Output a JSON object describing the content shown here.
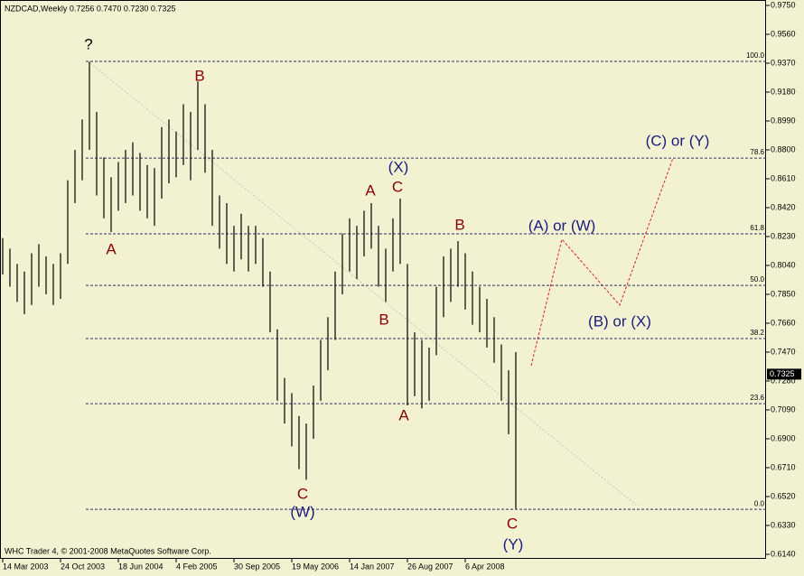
{
  "chart_data": {
    "type": "range",
    "header": "NZDCAD,Weekly  0.7256 0.7470 0.7230 0.7325",
    "footer": "WHC Trader 4, © 2001-2008 MetaQuotes Software Corp.",
    "series": [
      {
        "name": "high",
        "color": "#000000",
        "values": [
          0.822,
          0.815,
          0.805,
          0.8,
          0.812,
          0.818,
          0.81,
          0.805,
          0.812,
          0.86,
          0.88,
          0.9,
          0.938,
          0.905,
          0.875,
          0.862,
          0.872,
          0.88,
          0.885,
          0.878,
          0.87,
          0.868,
          0.895,
          0.9,
          0.892,
          0.91,
          0.905,
          0.925,
          0.91,
          0.88,
          0.85,
          0.845,
          0.83,
          0.838,
          0.83,
          0.83,
          0.822,
          0.8,
          0.762,
          0.73,
          0.72,
          0.705,
          0.7,
          0.725,
          0.755,
          0.77,
          0.8,
          0.825,
          0.835,
          0.83,
          0.84,
          0.845,
          0.83,
          0.815,
          0.835,
          0.848,
          0.805,
          0.76,
          0.755,
          0.75,
          0.79,
          0.81,
          0.815,
          0.82,
          0.812,
          0.8,
          0.79,
          0.782,
          0.77,
          0.752,
          0.735,
          0.747
        ]
      },
      {
        "name": "low",
        "color": "#000000",
        "values": [
          0.798,
          0.79,
          0.78,
          0.772,
          0.778,
          0.79,
          0.785,
          0.778,
          0.782,
          0.805,
          0.845,
          0.86,
          0.88,
          0.85,
          0.835,
          0.826,
          0.84,
          0.845,
          0.85,
          0.84,
          0.835,
          0.83,
          0.848,
          0.858,
          0.862,
          0.87,
          0.86,
          0.88,
          0.865,
          0.83,
          0.815,
          0.805,
          0.8,
          0.808,
          0.8,
          0.805,
          0.79,
          0.76,
          0.715,
          0.7,
          0.685,
          0.67,
          0.663,
          0.69,
          0.715,
          0.735,
          0.755,
          0.785,
          0.8,
          0.795,
          0.81,
          0.815,
          0.79,
          0.78,
          0.8,
          0.805,
          0.712,
          0.718,
          0.71,
          0.715,
          0.745,
          0.77,
          0.78,
          0.79,
          0.775,
          0.765,
          0.76,
          0.75,
          0.74,
          0.715,
          0.693,
          0.644
        ]
      }
    ],
    "current_price": 0.7325,
    "ylim": [
      0.614,
      0.975
    ],
    "yticks": [
      {
        "value": 0.975,
        "label": "0.9750"
      },
      {
        "value": 0.956,
        "label": "0.9560"
      },
      {
        "value": 0.937,
        "label": "0.9370"
      },
      {
        "value": 0.918,
        "label": "0.9180"
      },
      {
        "value": 0.899,
        "label": "0.8990"
      },
      {
        "value": 0.88,
        "label": "0.8800"
      },
      {
        "value": 0.861,
        "label": "0.8610"
      },
      {
        "value": 0.842,
        "label": "0.8420"
      },
      {
        "value": 0.823,
        "label": "0.8230"
      },
      {
        "value": 0.804,
        "label": "0.8040"
      },
      {
        "value": 0.785,
        "label": "0.7850"
      },
      {
        "value": 0.766,
        "label": "0.7660"
      },
      {
        "value": 0.747,
        "label": "0.7470"
      },
      {
        "value": 0.728,
        "label": "0.7280"
      },
      {
        "value": 0.709,
        "label": "0.7090"
      },
      {
        "value": 0.69,
        "label": "0.6900"
      },
      {
        "value": 0.671,
        "label": "0.6710"
      },
      {
        "value": 0.652,
        "label": "0.6520"
      },
      {
        "value": 0.633,
        "label": "0.6330"
      },
      {
        "value": 0.614,
        "label": "0.6140"
      }
    ],
    "xticks": [
      {
        "value": 0,
        "label": "14 Mar 2003"
      },
      {
        "value": 8,
        "label": "24 Oct 2003"
      },
      {
        "value": 16,
        "label": "18 Jun 2004"
      },
      {
        "value": 24,
        "label": "4 Feb 2005"
      },
      {
        "value": 32,
        "label": "30 Sep 2005"
      },
      {
        "value": 40,
        "label": "19 May 2006"
      },
      {
        "value": 48,
        "label": "14 Jan 2007"
      },
      {
        "value": 56,
        "label": "26 Aug 2007"
      },
      {
        "value": 64,
        "label": "6 Apr 2008"
      }
    ],
    "fib_levels": [
      {
        "value": 0.9382,
        "label": "100.0"
      },
      {
        "value": 0.8746,
        "label": "78.6"
      },
      {
        "value": 0.8248,
        "label": "61.8"
      },
      {
        "value": 0.7909,
        "label": "50.0"
      },
      {
        "value": 0.7559,
        "label": "38.2"
      },
      {
        "value": 0.7131,
        "label": "23.6"
      },
      {
        "value": 0.6436,
        "label": "0.0"
      }
    ],
    "annotations": [
      "?",
      "B",
      "A",
      "(X)",
      "A",
      "C",
      "B",
      "A",
      "B",
      "C",
      "(W)",
      "C",
      "(Y)",
      "(A) or (W)",
      "(B) or (X)",
      "(C) or (Y)"
    ]
  }
}
